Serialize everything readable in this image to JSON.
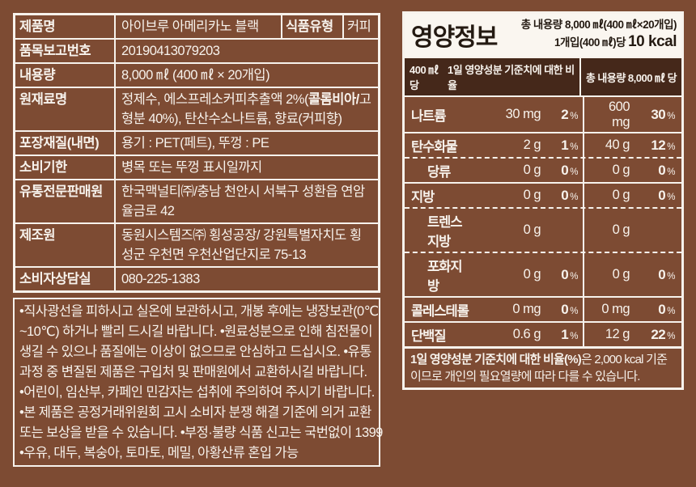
{
  "colors": {
    "background": "#7d4b33",
    "dark_header_bar": "#45281a",
    "line_and_text": "#f7f2ec",
    "header_ink": "#241a12"
  },
  "product_table": {
    "rows": [
      {
        "label": "제품명",
        "value": "아이브루 아메리카노 블랙",
        "type_label": "식품유형",
        "type_value": "커피"
      },
      {
        "label": "품목보고번호",
        "value": "20190413079203"
      },
      {
        "label": "내용량",
        "value": "8,000 ㎖ (400 ㎖ × 20개입)"
      },
      {
        "label": "원재료명",
        "value_pre": "정제수, 에스프레소커피추출액 2%(",
        "value_bold": "콜롬비아/",
        "value_post": "고형분 40%), 탄산수소나트륨, 향료(커피향)"
      },
      {
        "label": "포장재질(내면)",
        "value": "용기 : PET(페트), 뚜껑 : PE"
      },
      {
        "label": "소비기한",
        "value": "병목 또는 뚜껑 표시일까지"
      },
      {
        "label": "유통전문판매원",
        "value": "한국맥널티㈜/충남 천안시 서북구 성환읍 연암율금로 42"
      },
      {
        "label": "제조원",
        "value": "동원시스템즈㈜ 횡성공장/ 강원특별자치도 횡성군 우천면 우천산업단지로 75-13"
      },
      {
        "label": "소비자상담실",
        "value": "080-225-1383"
      }
    ]
  },
  "notices": {
    "lines": [
      "•직사광선을 피하시고 실온에 보관하시고, 개봉 후에는 냉장보관(0℃",
      "~10℃) 하거나 빨리 드시길 바랍니다. •원료성분으로 인해 침전물이",
      "생길 수 있으나 품질에는 이상이 없으므로 안심하고 드십시오. •유통",
      "과정 중 변질된 제품은 구입처 및 판매원에서 교환하시길 바랍니다.",
      "•어린이, 임산부, 카페인 민감자는 섭취에 주의하여 주시기 바랍니다.",
      "•본 제품은 공정거래위원회 고시 소비자 분쟁 해결 기준에 의거 교환",
      "또는 보상을 받을 수 있습니다. •부정·불량 식품 신고는 국번없이 1399",
      "•우유, 대두, 복숭아, 토마토, 메밀, 아황산류 혼입 가능"
    ]
  },
  "nutrition_facts": {
    "title": "영양정보",
    "total_volume": "총 내용량 8,000 ㎖(400 ㎖×20개입)",
    "per_serving": "1개입(400 ㎖)당",
    "kcal": "10 kcal",
    "columns": {
      "per_400": "400 ㎖ 당",
      "daily_pct": "1일 영양성분 기준치에 대한 비율",
      "per_total": "총 내용량 8,000 ㎖ 당"
    },
    "rows": [
      {
        "name": "나트륨",
        "amt1": "30 mg",
        "pct1": "2",
        "sign1": "%",
        "amt2": "600 mg",
        "pct2": "30",
        "sign2": "%"
      },
      {
        "name": "탄수화물",
        "amt1": "2 g",
        "pct1": "1",
        "sign1": "%",
        "amt2": "40 g",
        "pct2": "12",
        "sign2": "%"
      },
      {
        "name": "당류",
        "amt1": "0 g",
        "pct1": "0",
        "sign1": "%",
        "amt2": "0 g",
        "pct2": "0",
        "sign2": "%"
      },
      {
        "name": "지방",
        "amt1": "0 g",
        "pct1": "0",
        "sign1": "%",
        "amt2": "0 g",
        "pct2": "0",
        "sign2": "%"
      },
      {
        "name": "트렌스지방",
        "amt1": "0 g",
        "pct1": "",
        "sign1": "",
        "amt2": "0 g",
        "pct2": "",
        "sign2": ""
      },
      {
        "name": "포화지방",
        "amt1": "0 g",
        "pct1": "0",
        "sign1": "%",
        "amt2": "0 g",
        "pct2": "0",
        "sign2": "%"
      },
      {
        "name": "콜레스테롤",
        "amt1": "0 mg",
        "pct1": "0",
        "sign1": "%",
        "amt2": "0 mg",
        "pct2": "0",
        "sign2": "%"
      },
      {
        "name": "단백질",
        "amt1": "0.6 g",
        "pct1": "1",
        "sign1": "%",
        "amt2": "12 g",
        "pct2": "22",
        "sign2": "%"
      }
    ],
    "footnote_bold": "1일 영양성분 기준치에 대한 비율(%)",
    "footnote_rest": "은 2,000 kcal 기준이므로 개인의 필요열량에 따라 다를 수 있습니다."
  }
}
